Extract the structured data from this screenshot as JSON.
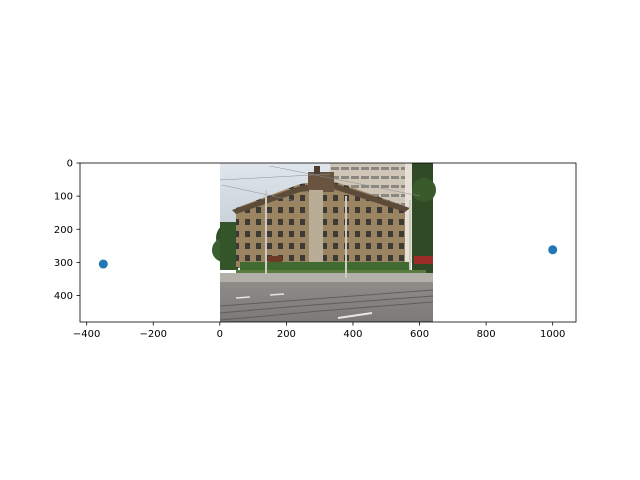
{
  "chart_data": {
    "type": "scatter",
    "title": "",
    "xlabel": "",
    "ylabel": "",
    "xlim": [
      -420,
      1070
    ],
    "ylim": [
      480,
      0
    ],
    "y_inverted": true,
    "xticks": [
      -400,
      -200,
      0,
      200,
      400,
      600,
      800,
      1000
    ],
    "yticks": [
      0,
      100,
      200,
      300,
      400
    ],
    "grid": false,
    "background_image": {
      "description_icon": "street-photo-brick-apartment-building",
      "extent": {
        "x": [
          0,
          640
        ],
        "y": [
          480,
          0
        ]
      }
    },
    "series": [
      {
        "color": "#1f77b4",
        "points": [
          {
            "x": -350,
            "y": 305
          },
          {
            "x": 1000,
            "y": 262
          }
        ]
      }
    ]
  }
}
